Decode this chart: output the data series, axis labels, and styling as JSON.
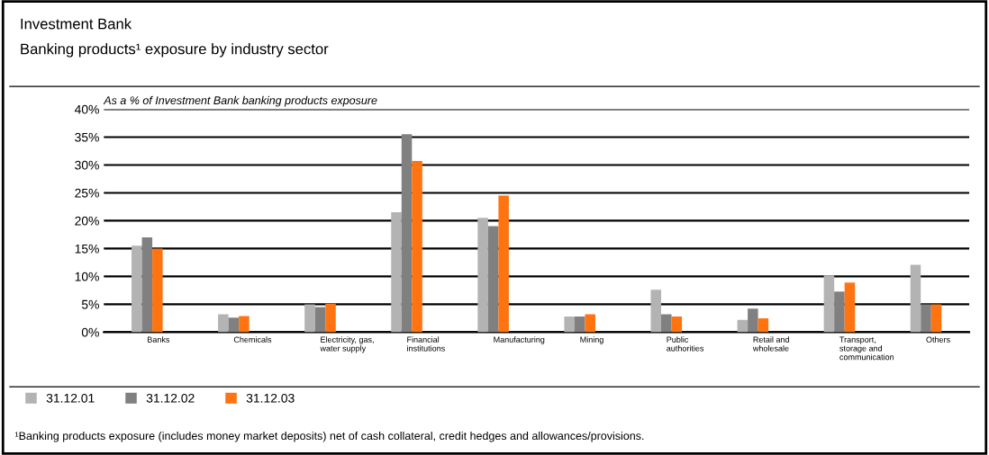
{
  "chart_data": {
    "type": "bar",
    "title": "Investment Bank",
    "subtitle": "Banking products¹ exposure by industry sector",
    "ylabel": "As a % of Investment Bank banking products exposure",
    "categories": [
      "Banks",
      "Chemicals",
      "Electricity, gas,\nwater supply",
      "Financial\ninstitutions",
      "Manufacturing",
      "Mining",
      "Public\nauthorities",
      "Retail and\nwholesale",
      "Transport,\nstorage and\ncommunication",
      "Others"
    ],
    "series": [
      {
        "name": "31.12.01",
        "color": "#b3b3b3",
        "values": [
          15.5,
          3.2,
          5.0,
          21.5,
          20.5,
          2.8,
          7.6,
          2.2,
          10.2,
          12.1
        ]
      },
      {
        "name": "31.12.02",
        "color": "#808080",
        "values": [
          17.0,
          2.6,
          4.5,
          35.5,
          19.0,
          2.8,
          3.2,
          4.2,
          7.3,
          5.0
        ]
      },
      {
        "name": "31.12.03",
        "color": "#ff7410",
        "values": [
          15.0,
          2.9,
          5.1,
          30.7,
          24.5,
          3.2,
          2.8,
          2.5,
          8.9,
          5.0
        ]
      }
    ],
    "ylim": [
      0,
      40
    ],
    "yticks": [
      {
        "value": 0,
        "label": "0%"
      },
      {
        "value": 5,
        "label": "5%"
      },
      {
        "value": 10,
        "label": "10%"
      },
      {
        "value": 15,
        "label": "15%"
      },
      {
        "value": 20,
        "label": "20%"
      },
      {
        "value": 25,
        "label": "25%"
      },
      {
        "value": 30,
        "label": "30%"
      },
      {
        "value": 35,
        "label": "35%"
      },
      {
        "value": 40,
        "label": "40%"
      }
    ],
    "grid": "y",
    "legend": "bottom left",
    "annotations": [
      "¹Banking products exposure (includes money market deposits) net of cash collateral, credit hedges and allowances/provisions."
    ]
  }
}
